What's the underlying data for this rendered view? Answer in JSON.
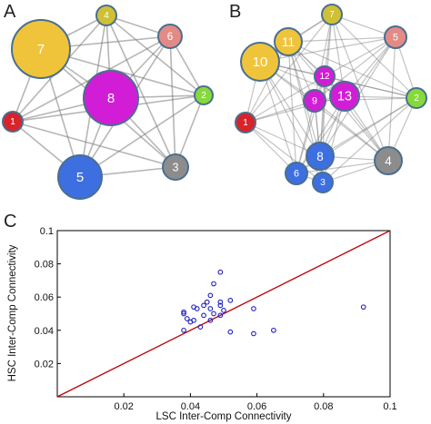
{
  "panels": {
    "a_letter": "A",
    "b_letter": "B",
    "c_letter": "C"
  },
  "networks": [
    {
      "id": "A",
      "nodes": [
        {
          "label": "1",
          "color": "#d8232a"
        },
        {
          "label": "2",
          "color": "#86d93a"
        },
        {
          "label": "3",
          "color": "#8c8c8c"
        },
        {
          "label": "4",
          "color": "#cfc035"
        },
        {
          "label": "5",
          "color": "#3d6fe0"
        },
        {
          "label": "6",
          "color": "#e38a86"
        },
        {
          "label": "7",
          "color": "#f0c43a"
        },
        {
          "label": "8",
          "color": "#d11ed6"
        }
      ]
    },
    {
      "id": "B",
      "nodes": [
        {
          "label": "1",
          "color": "#d8232a"
        },
        {
          "label": "2",
          "color": "#86d93a"
        },
        {
          "label": "3",
          "color": "#3d6fe0"
        },
        {
          "label": "4",
          "color": "#8c8c8c"
        },
        {
          "label": "5",
          "color": "#e38a86"
        },
        {
          "label": "6",
          "color": "#3d6fe0"
        },
        {
          "label": "7",
          "color": "#cfc035"
        },
        {
          "label": "8",
          "color": "#3d6fe0"
        },
        {
          "label": "9",
          "color": "#d11ed6"
        },
        {
          "label": "10",
          "color": "#f0c43a"
        },
        {
          "label": "11",
          "color": "#f0c43a"
        },
        {
          "label": "12",
          "color": "#d11ed6"
        },
        {
          "label": "13",
          "color": "#d11ed6"
        }
      ]
    }
  ],
  "chart_data": {
    "type": "scatter",
    "title": "",
    "xlabel": "LSC Inter-Comp Connectivity",
    "ylabel": "HSC Inter-Comp Connectivity",
    "xlim": [
      0,
      0.1
    ],
    "ylim": [
      0,
      0.1
    ],
    "xticks": [
      "0.02",
      "0.04",
      "0.06",
      "0.08",
      "0.1"
    ],
    "yticks": [
      "0.02",
      "0.04",
      "0.06",
      "0.08",
      "0.1"
    ],
    "diagonal_line_color": "#c00000",
    "marker_color": "#1f1fbf",
    "points": [
      [
        0.049,
        0.075
      ],
      [
        0.047,
        0.068
      ],
      [
        0.046,
        0.061
      ],
      [
        0.052,
        0.058
      ],
      [
        0.045,
        0.057
      ],
      [
        0.049,
        0.057
      ],
      [
        0.041,
        0.054
      ],
      [
        0.044,
        0.055
      ],
      [
        0.038,
        0.05
      ],
      [
        0.038,
        0.051
      ],
      [
        0.042,
        0.053
      ],
      [
        0.046,
        0.053
      ],
      [
        0.049,
        0.055
      ],
      [
        0.05,
        0.052
      ],
      [
        0.047,
        0.05
      ],
      [
        0.044,
        0.049
      ],
      [
        0.039,
        0.047
      ],
      [
        0.041,
        0.046
      ],
      [
        0.046,
        0.046
      ],
      [
        0.049,
        0.049
      ],
      [
        0.04,
        0.045
      ],
      [
        0.043,
        0.042
      ],
      [
        0.038,
        0.04
      ],
      [
        0.052,
        0.039
      ],
      [
        0.059,
        0.053
      ],
      [
        0.059,
        0.038
      ],
      [
        0.065,
        0.04
      ],
      [
        0.092,
        0.054
      ]
    ]
  }
}
